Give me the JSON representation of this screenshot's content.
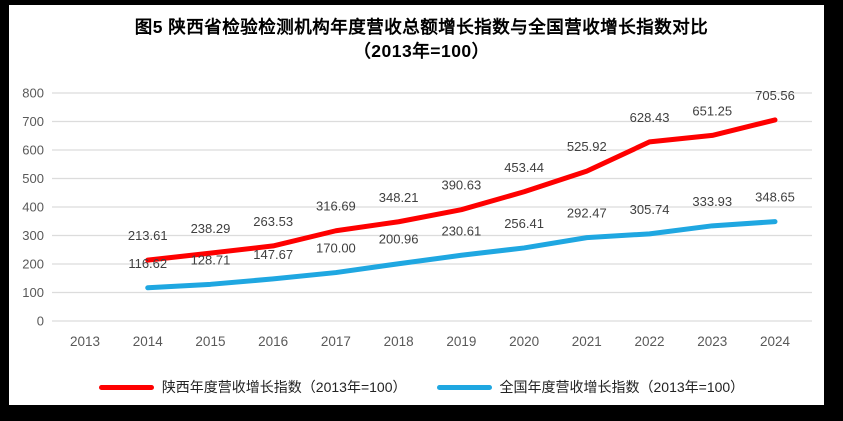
{
  "title": {
    "line1": "图5  陕西省检验检测机构年度营收总额增长指数与全国营收增长指数对比",
    "line2": "（2013年=100）"
  },
  "chart_data": {
    "type": "line",
    "title": "图5  陕西省检验检测机构年度营收总额增长指数与全国营收增长指数对比（2013年=100）",
    "categories": [
      "2013",
      "2014",
      "2015",
      "2016",
      "2017",
      "2018",
      "2019",
      "2020",
      "2021",
      "2022",
      "2023",
      "2024"
    ],
    "series": [
      {
        "name": "陕西年度营收增长指数（2013年=100）",
        "color": "#fe0000",
        "values": [
          null,
          213.61,
          238.29,
          263.53,
          316.69,
          348.21,
          390.63,
          453.44,
          525.92,
          628.43,
          651.25,
          705.56
        ]
      },
      {
        "name": "全国年度营收增长指数（2013年=100）",
        "color": "#1fa7e1",
        "values": [
          null,
          116.62,
          128.71,
          147.67,
          170.0,
          200.96,
          230.61,
          256.41,
          292.47,
          305.74,
          333.93,
          348.65
        ]
      }
    ],
    "xlabel": "",
    "ylabel": "",
    "ylim": [
      0,
      800
    ],
    "yticks": [
      0,
      100,
      200,
      300,
      400,
      500,
      600,
      700,
      800
    ],
    "grid": true,
    "data_labels": true,
    "data_label_decimals": 2,
    "legend_position": "bottom",
    "colors": {
      "gridline": "#dcdcdc",
      "axis_text": "#595959",
      "data_label": "#404040",
      "frame": "#000000",
      "background": "#ffffff"
    }
  }
}
